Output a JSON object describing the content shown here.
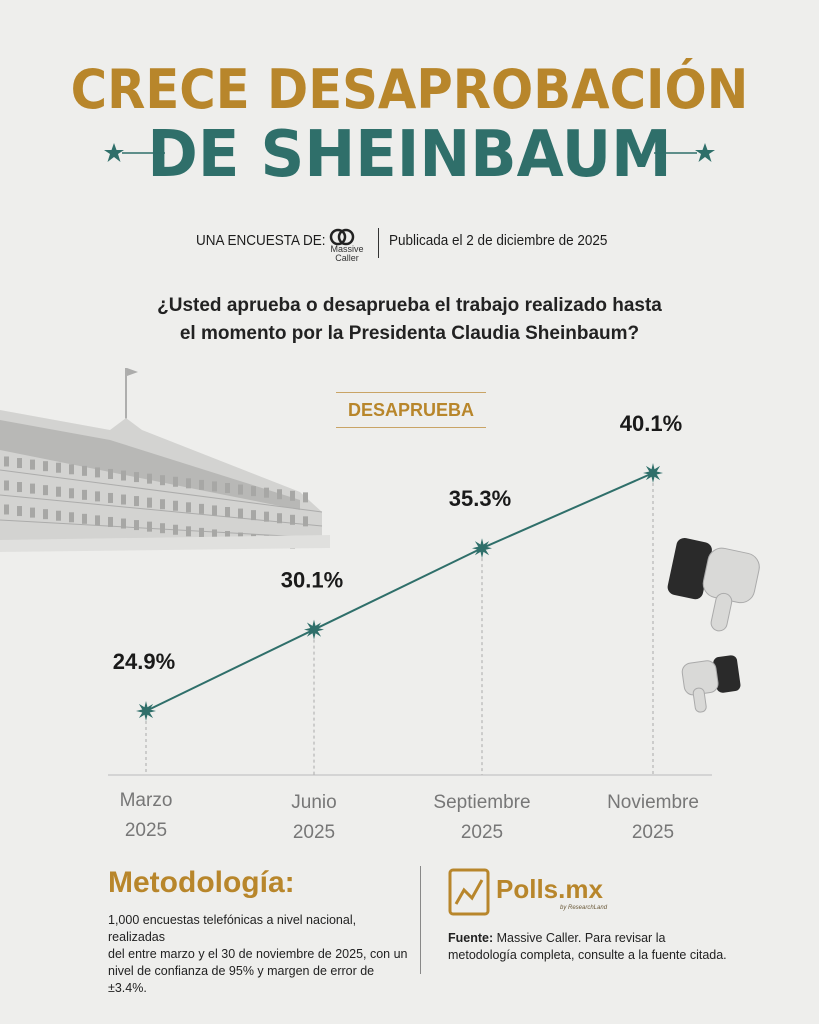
{
  "header": {
    "title_line1": "CRECE DESAPROBACIÓN",
    "title_line2": "DE SHEINBAUM"
  },
  "subheader": {
    "survey_label": "UNA ENCUESTA DE:",
    "pollster_logo_text_1": "Massive",
    "pollster_logo_text_2": "Caller",
    "published": "Publicada el 2 de diciembre de 2025"
  },
  "question": {
    "line1": "¿Usted aprueba o desaprueba el trabajo realizado hasta",
    "line2": "el momento por la Presidenta Claudia Sheinbaum?"
  },
  "series_badge": "DESAPRUEBA",
  "chart_data": {
    "type": "line",
    "categories": [
      "Marzo 2025",
      "Junio 2025",
      "Septiembre 2025",
      "Noviembre 2025"
    ],
    "category_lines": [
      [
        "Marzo",
        "2025"
      ],
      [
        "Junio",
        "2025"
      ],
      [
        "Septiembre",
        "2025"
      ],
      [
        "Noviembre",
        "2025"
      ]
    ],
    "series": [
      {
        "name": "DESAPRUEBA",
        "values": [
          24.9,
          30.1,
          35.3,
          40.1
        ],
        "labels": [
          "24.9%",
          "30.1%",
          "35.3%",
          "40.1%"
        ]
      }
    ],
    "line_color": "#2f6f6a",
    "grid": false
  },
  "methodology": {
    "title": "Metodología:",
    "line1": "1,000 encuestas telefónicas a nivel nacional, realizadas",
    "line2": "del entre marzo y el 30 de noviembre de 2025, con un",
    "line3": "nivel de confianza de 95% y margen de error de ±3.4%."
  },
  "footer": {
    "brand": "Polls.mx",
    "brand_sub": "by ResearchLand",
    "source_label": "Fuente:",
    "source_line1": " Massive Caller. Para revisar la",
    "source_line2": "metodología completa, consulte a la fuente citada."
  },
  "colors": {
    "gold": "#b8862b",
    "teal": "#2f6f6a",
    "background": "#eeeeec"
  },
  "icons": [
    "ornament-star-icon",
    "national-palace-illustration",
    "thumbs-down-icon",
    "polls-chart-logo-icon",
    "massive-caller-logo-icon"
  ]
}
